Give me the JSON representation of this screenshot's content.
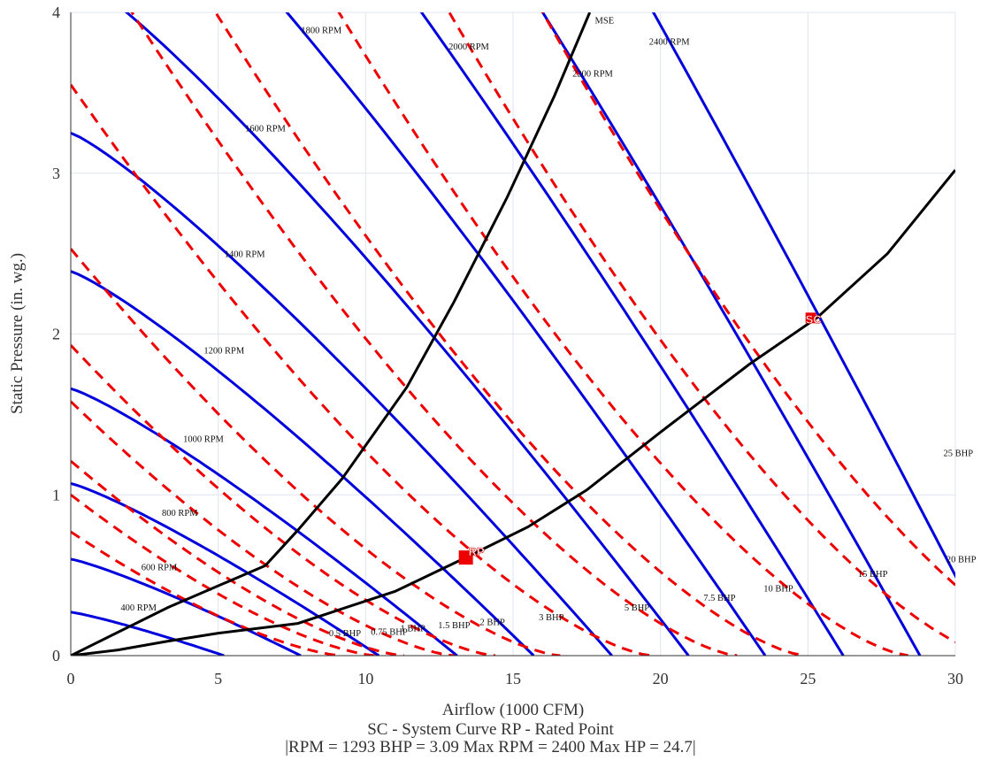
{
  "chart_data": {
    "type": "line",
    "xlabel": "Airflow (1000 CFM)",
    "ylabel": "Static Pressure (in. wg.)",
    "xlim": [
      0,
      30
    ],
    "ylim": [
      0,
      4
    ],
    "x_ticks": [
      "0",
      "5",
      "10",
      "15",
      "20",
      "25",
      "30"
    ],
    "y_ticks": [
      "0",
      "1",
      "2",
      "3",
      "4"
    ],
    "grid": true,
    "colors": {
      "rpm": "#0000dd",
      "bhp": "#ee0000",
      "system": "#000000",
      "marker": "#ee0000",
      "grid": "#dfe4f0"
    },
    "rpm_curves": [
      {
        "name": "400 RPM",
        "x0": 5.2,
        "y0": 0.27,
        "label_at": [
          2.3,
          0.28
        ]
      },
      {
        "name": "600 RPM",
        "x0": 7.8,
        "y0": 0.6,
        "label_at": [
          3.0,
          0.53
        ]
      },
      {
        "name": "800 RPM",
        "x0": 10.45,
        "y0": 1.07,
        "label_at": [
          3.7,
          0.87
        ]
      },
      {
        "name": "1000 RPM",
        "x0": 13.1,
        "y0": 1.66,
        "label_at": [
          4.5,
          1.33
        ]
      },
      {
        "name": "1200 RPM",
        "x0": 15.7,
        "y0": 2.39,
        "label_at": [
          5.2,
          1.88
        ]
      },
      {
        "name": "1400 RPM",
        "x0": 18.35,
        "y0": 3.25,
        "label_at": [
          5.9,
          2.48
        ]
      },
      {
        "name": "1600 RPM",
        "x0": 20.95,
        "y0": 4.25,
        "label_at": [
          6.6,
          3.26
        ]
      },
      {
        "name": "1800 RPM",
        "x0": 23.55,
        "y0": 5.35,
        "label_at": [
          8.5,
          3.87
        ]
      },
      {
        "name": "2000 RPM",
        "x0": 26.2,
        "y0": 6.6,
        "label_at": [
          13.5,
          3.77
        ]
      },
      {
        "name": "2200 RPM",
        "x0": 28.8,
        "y0": 8.0,
        "label_at": [
          17.7,
          3.6
        ]
      },
      {
        "name": "2400 RPM",
        "x0": 31.4,
        "y0": 9.5,
        "label_at": [
          20.3,
          3.8
        ]
      }
    ],
    "bhp_curves": [
      {
        "name": "0.5 BHP",
        "x0": 9.2,
        "y0": 0.77,
        "label_at": [
          9.3,
          0.12
        ]
      },
      {
        "name": "0.75 BHP",
        "x0": 10.35,
        "y0": 1.0,
        "label_at": [
          10.8,
          0.13
        ]
      },
      {
        "name": "1 BHP",
        "x0": 11.3,
        "y0": 1.21,
        "label_at": [
          11.6,
          0.15
        ]
      },
      {
        "name": "1.5 BHP",
        "x0": 13.0,
        "y0": 1.58,
        "label_at": [
          13.0,
          0.17
        ]
      },
      {
        "name": "2 BHP",
        "x0": 14.4,
        "y0": 1.93,
        "label_at": [
          14.3,
          0.19
        ]
      },
      {
        "name": "3 BHP",
        "x0": 16.6,
        "y0": 2.53,
        "label_at": [
          16.3,
          0.22
        ]
      },
      {
        "name": "5 BHP",
        "x0": 19.7,
        "y0": 3.55,
        "label_at": [
          19.2,
          0.28
        ]
      },
      {
        "name": "7.5 BHP",
        "x0": 22.6,
        "y0": 4.6,
        "label_at": [
          22.0,
          0.34
        ]
      },
      {
        "name": "10 BHP",
        "x0": 24.9,
        "y0": 5.5,
        "label_at": [
          24.0,
          0.4
        ]
      },
      {
        "name": "15 BHP",
        "x0": 28.4,
        "y0": 7.0,
        "label_at": [
          27.2,
          0.49
        ]
      },
      {
        "name": "20 BHP",
        "x0": 31.3,
        "y0": 8.6,
        "label_at": [
          30.2,
          0.58
        ]
      },
      {
        "name": "25 BHP",
        "x0": 33.9,
        "y0": 10.1,
        "label_at": [
          30.1,
          1.24
        ]
      }
    ],
    "mse_curve": {
      "name": "MSE",
      "points": [
        [
          0,
          0
        ],
        [
          3.3,
          0.3
        ],
        [
          6.6,
          0.56
        ],
        [
          7.7,
          0.78
        ],
        [
          9.2,
          1.1
        ],
        [
          11.4,
          1.67
        ],
        [
          13.0,
          2.2
        ],
        [
          14.8,
          2.85
        ],
        [
          16.4,
          3.48
        ],
        [
          17.6,
          4.0
        ]
      ],
      "label_at": [
        18.1,
        3.93
      ]
    },
    "system_curve": {
      "points": [
        [
          0,
          0
        ],
        [
          1.6,
          0.035
        ],
        [
          3.3,
          0.09
        ],
        [
          5.0,
          0.14
        ],
        [
          7.7,
          0.2
        ],
        [
          11.0,
          0.4
        ],
        [
          13.4,
          0.61
        ],
        [
          15.5,
          0.8
        ],
        [
          17.5,
          1.03
        ],
        [
          20.0,
          1.39
        ],
        [
          23.0,
          1.81
        ],
        [
          25.3,
          2.1
        ],
        [
          27.7,
          2.5
        ],
        [
          30.0,
          3.02
        ]
      ]
    },
    "points": [
      {
        "label": "RP",
        "x": 13.4,
        "y": 0.61
      },
      {
        "label": "SC",
        "x": 25.1,
        "y": 2.1
      }
    ],
    "footer_lines": [
      "SC - System Curve  RP - Rated Point",
      "|RPM = 1293  BHP = 3.09  Max RPM = 2400   Max HP = 24.7|"
    ]
  }
}
